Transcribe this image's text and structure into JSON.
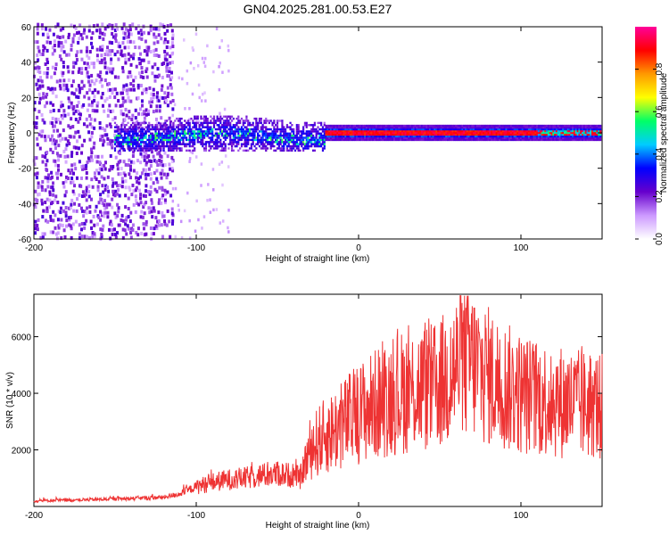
{
  "figure_title": "GN04.2025.281.00.53.E27",
  "chart_data": [
    {
      "type": "heatmap",
      "title": "GN04.2025.281.00.53.E27",
      "xlabel": "Height of straight line (km)",
      "ylabel": "Frequency (Hz)",
      "xlim": [
        -200,
        150
      ],
      "ylim": [
        -60,
        60
      ],
      "xticks": [
        -200,
        -100,
        0,
        100
      ],
      "yticks": [
        -60,
        -40,
        -20,
        0,
        20,
        40,
        60
      ],
      "xtick_labels": [
        "-200",
        "-100",
        "0",
        "100"
      ],
      "ytick_labels": [
        "-60",
        "-40",
        "-20",
        "0",
        "20",
        "40",
        "60"
      ],
      "colorbar": {
        "label": "Normalized spectral amplitude",
        "range": [
          0,
          1
        ],
        "ticks": [
          0.0,
          0.2,
          0.4,
          0.6,
          0.8
        ],
        "tick_labels": [
          "0.0",
          "0.2",
          "0.4",
          "0.6",
          "0.8"
        ],
        "colormap": [
          "#ffffff",
          "#cc99ff",
          "#6600cc",
          "#0000ff",
          "#00ccff",
          "#00ff66",
          "#ffff00",
          "#ff9900",
          "#ff0000",
          "#ff0099"
        ]
      },
      "regions": [
        {
          "x_range": [
            -200,
            -115
          ],
          "freq_range": [
            -60,
            60
          ],
          "amplitude": 0.1,
          "description": "broadband noise"
        },
        {
          "x_range": [
            -115,
            -80
          ],
          "freq_range": [
            -60,
            60
          ],
          "amplitude": 0.03,
          "description": "sparse noise"
        },
        {
          "x_range": [
            -150,
            -20
          ],
          "freq_range": [
            -10,
            10
          ],
          "amplitude": 0.35,
          "description": "signal band"
        },
        {
          "x_range": [
            -20,
            150
          ],
          "freq_range": [
            -2,
            2
          ],
          "amplitude": 0.9,
          "description": "narrow carrier line"
        }
      ]
    },
    {
      "type": "line",
      "xlabel": "Height of straight line (km)",
      "ylabel": "SNR (10 * v/v)",
      "xlim": [
        -200,
        150
      ],
      "ylim": [
        0,
        7500
      ],
      "xticks": [
        -200,
        -100,
        0,
        100
      ],
      "yticks": [
        2000,
        4000,
        6000
      ],
      "xtick_labels": [
        "-200",
        "-100",
        "0",
        "100"
      ],
      "ytick_labels": [
        "2000",
        "4000",
        "6000"
      ],
      "color": "#ee3333",
      "series": [
        {
          "name": "SNR",
          "x": [
            -200,
            -180,
            -160,
            -140,
            -120,
            -110,
            -100,
            -90,
            -80,
            -70,
            -60,
            -50,
            -40,
            -36,
            -33,
            -30,
            -25,
            -20,
            -15,
            -10,
            -5,
            0,
            10,
            20,
            30,
            40,
            48,
            55,
            60,
            67,
            75,
            85,
            95,
            105,
            115,
            125,
            135,
            145,
            150
          ],
          "y": [
            200,
            220,
            250,
            280,
            320,
            450,
            700,
            850,
            950,
            1000,
            1100,
            1150,
            1100,
            1000,
            1500,
            2000,
            2300,
            2500,
            2700,
            2900,
            3100,
            3300,
            3600,
            3900,
            4100,
            4200,
            4200,
            4600,
            4900,
            5200,
            4800,
            4400,
            4100,
            3900,
            3800,
            3700,
            3600,
            3600,
            3500
          ]
        }
      ]
    }
  ]
}
